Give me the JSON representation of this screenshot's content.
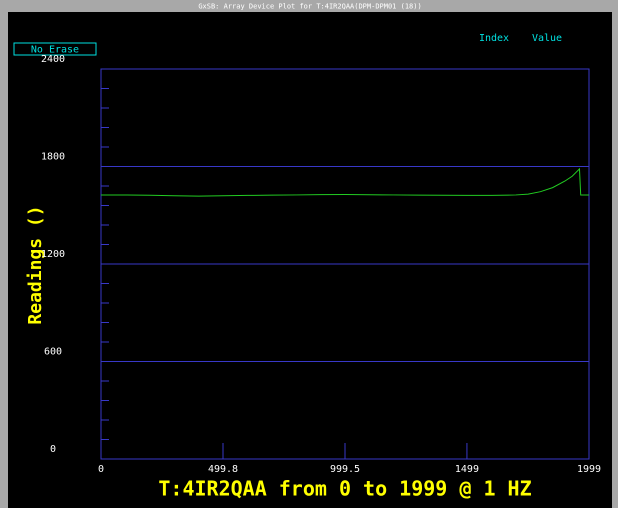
{
  "window": {
    "title": "GxSB: Array Device Plot for T:4IR2QAA(DPM-DPM01 (18))",
    "button": "No Erase",
    "index_label": "Index",
    "value_label": "Value"
  },
  "chart_data": {
    "type": "line",
    "xlabel": "T:4IR2QAA from 0 to 1999 @ 1 HZ",
    "ylabel": "Readings ()",
    "xlim": [
      0,
      1999
    ],
    "xticks": [
      0,
      499.8,
      999.5,
      1499,
      1999
    ],
    "ylim": [
      0,
      2400
    ],
    "yticks": [
      0,
      600,
      1200,
      1800,
      2400
    ],
    "yminor": [
      120,
      240,
      360,
      480,
      720,
      840,
      960,
      1080,
      1320,
      1440,
      1560,
      1680,
      1920,
      2040,
      2160,
      2280
    ],
    "grid": true,
    "series": [
      {
        "color": "#22cc22",
        "x": [
          0,
          100,
          200,
          300,
          400,
          500,
          600,
          700,
          800,
          900,
          1000,
          1100,
          1200,
          1300,
          1400,
          1500,
          1600,
          1700,
          1750,
          1800,
          1850,
          1900,
          1930,
          1960,
          1965,
          1999
        ],
        "values": [
          1625,
          1625,
          1623,
          1620,
          1618,
          1620,
          1622,
          1624,
          1625,
          1627,
          1628,
          1626,
          1625,
          1624,
          1623,
          1622,
          1622,
          1625,
          1630,
          1645,
          1670,
          1710,
          1740,
          1785,
          1625,
          1625
        ]
      }
    ]
  }
}
